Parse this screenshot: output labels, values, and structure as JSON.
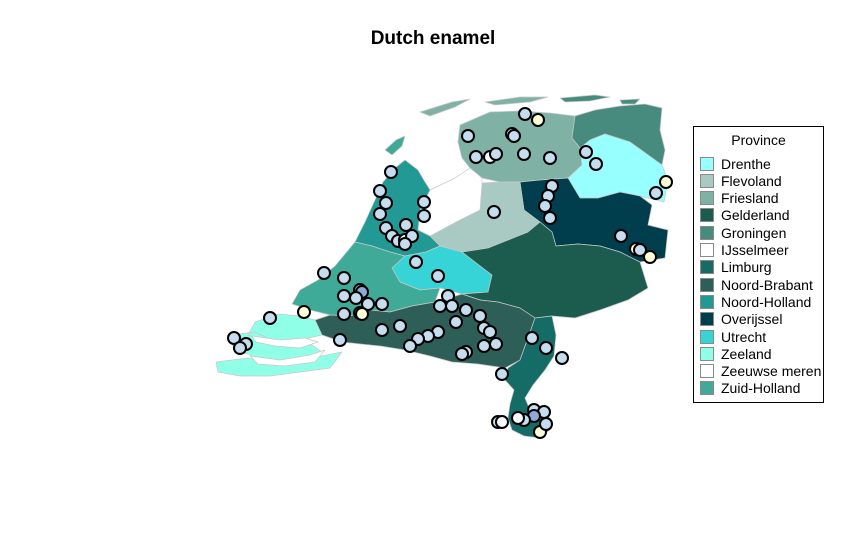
{
  "title": "Dutch enamel",
  "legend": {
    "title": "Province",
    "placement": "right",
    "items": [
      {
        "label": "Drenthe",
        "color": "#98FFFF"
      },
      {
        "label": "Flevoland",
        "color": "#A9C9C3"
      },
      {
        "label": "Friesland",
        "color": "#7FB1A4"
      },
      {
        "label": "Gelderland",
        "color": "#1B5C4E"
      },
      {
        "label": "Groningen",
        "color": "#478A7E"
      },
      {
        "label": "IJsselmeer",
        "color": "#FFFFFF"
      },
      {
        "label": "Limburg",
        "color": "#156C67"
      },
      {
        "label": "Noord-Brabant",
        "color": "#2E5E58"
      },
      {
        "label": "Noord-Holland",
        "color": "#239996"
      },
      {
        "label": "Overijssel",
        "color": "#003E4D"
      },
      {
        "label": "Utrecht",
        "color": "#36D4D6"
      },
      {
        "label": "Zeeland",
        "color": "#90FFE8"
      },
      {
        "label": "Zeeuwse meren",
        "color": "#FFFFFF"
      },
      {
        "label": "Zuid-Holland",
        "color": "#3FAA97"
      }
    ]
  },
  "marker_colors": {
    "light-blue": "#C6DDF0",
    "cream": "#FFFFD9",
    "white": "#F6FBFF",
    "steel-blue": "#8FAAD6"
  }
}
